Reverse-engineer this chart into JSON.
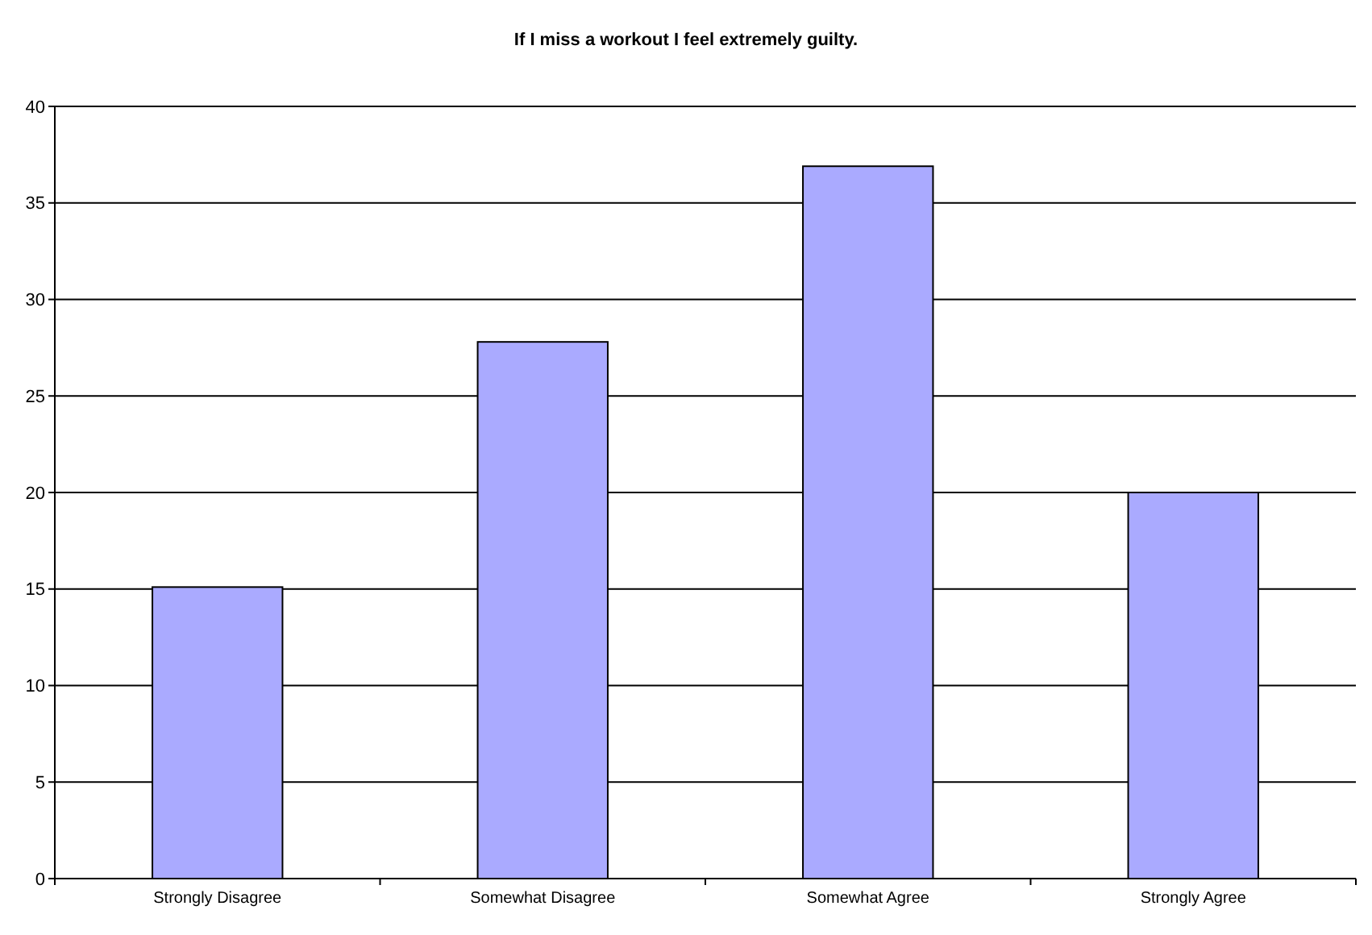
{
  "chart_data": {
    "type": "bar",
    "title": "If I miss a workout I feel extremely guilty.",
    "categories": [
      "Strongly Disagree",
      "Somewhat Disagree",
      "Somewhat Agree",
      "Strongly Agree"
    ],
    "values": [
      15.1,
      27.8,
      36.9,
      20
    ],
    "color": "#aaaaff",
    "ylim": [
      0,
      40
    ],
    "yticks": [
      0,
      5,
      10,
      15,
      20,
      25,
      30,
      35,
      40
    ],
    "grid": "y"
  }
}
